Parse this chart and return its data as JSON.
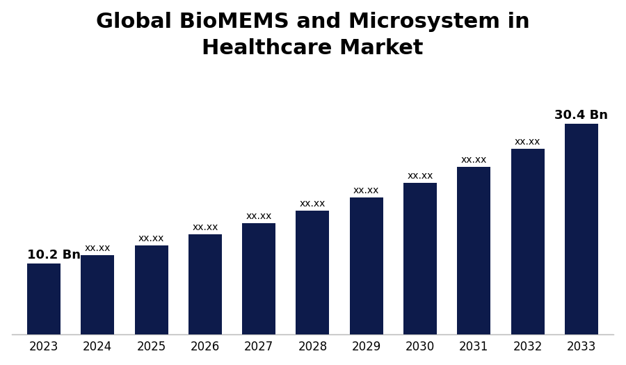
{
  "title": "Global BioMEMS and Microsystem in\nHealthcare Market",
  "categories": [
    "2023",
    "2024",
    "2025",
    "2026",
    "2027",
    "2028",
    "2029",
    "2030",
    "2031",
    "2032",
    "2033"
  ],
  "values": [
    10.2,
    11.4,
    12.8,
    14.4,
    16.1,
    17.9,
    19.8,
    21.9,
    24.2,
    26.8,
    30.4
  ],
  "labels": [
    "10.2 Bn",
    "xx.xx",
    "xx.xx",
    "xx.xx",
    "xx.xx",
    "xx.xx",
    "xx.xx",
    "xx.xx",
    "xx.xx",
    "xx.xx",
    "30.4 Bn"
  ],
  "bar_color": "#0d1b4b",
  "label_color": "#000000",
  "background_color": "#ffffff",
  "title_fontsize": 22,
  "label_fontsize_small": 10,
  "label_fontsize_large": 13,
  "tick_fontsize": 12,
  "ylim": [
    0,
    38
  ],
  "bar_width": 0.62
}
